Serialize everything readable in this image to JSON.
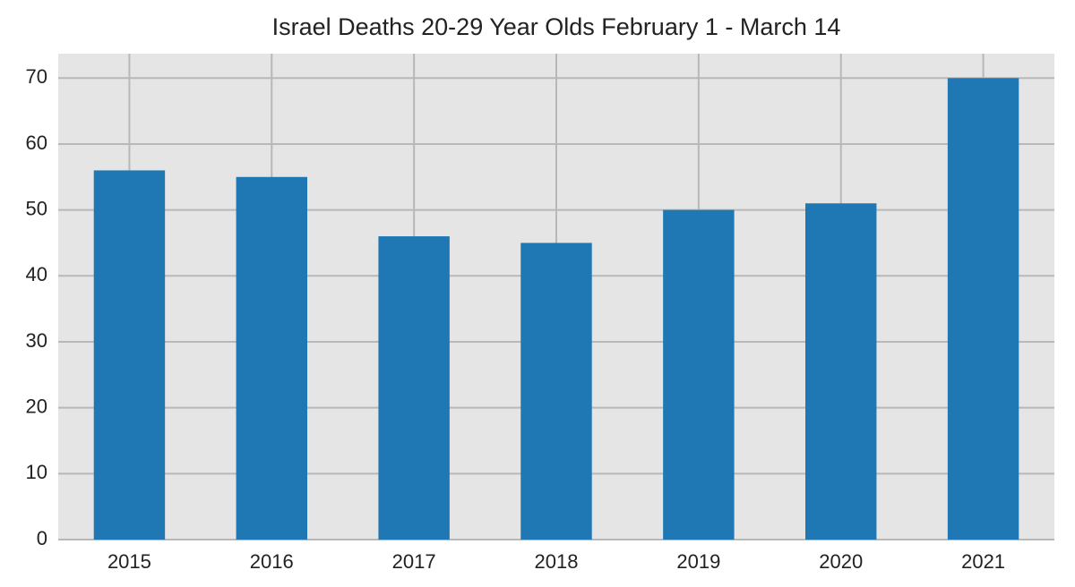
{
  "chart_data": {
    "type": "bar",
    "title": "Israel Deaths 20-29 Year Olds February 1 - March 14",
    "categories": [
      "2015",
      "2016",
      "2017",
      "2018",
      "2019",
      "2020",
      "2021"
    ],
    "values": [
      56,
      55,
      46,
      45,
      50,
      51,
      70
    ],
    "color": "#1f77b4",
    "ylim": [
      0,
      73.7
    ],
    "yticks": [
      0,
      10,
      20,
      30,
      40,
      50,
      60,
      70
    ],
    "grid": true
  }
}
